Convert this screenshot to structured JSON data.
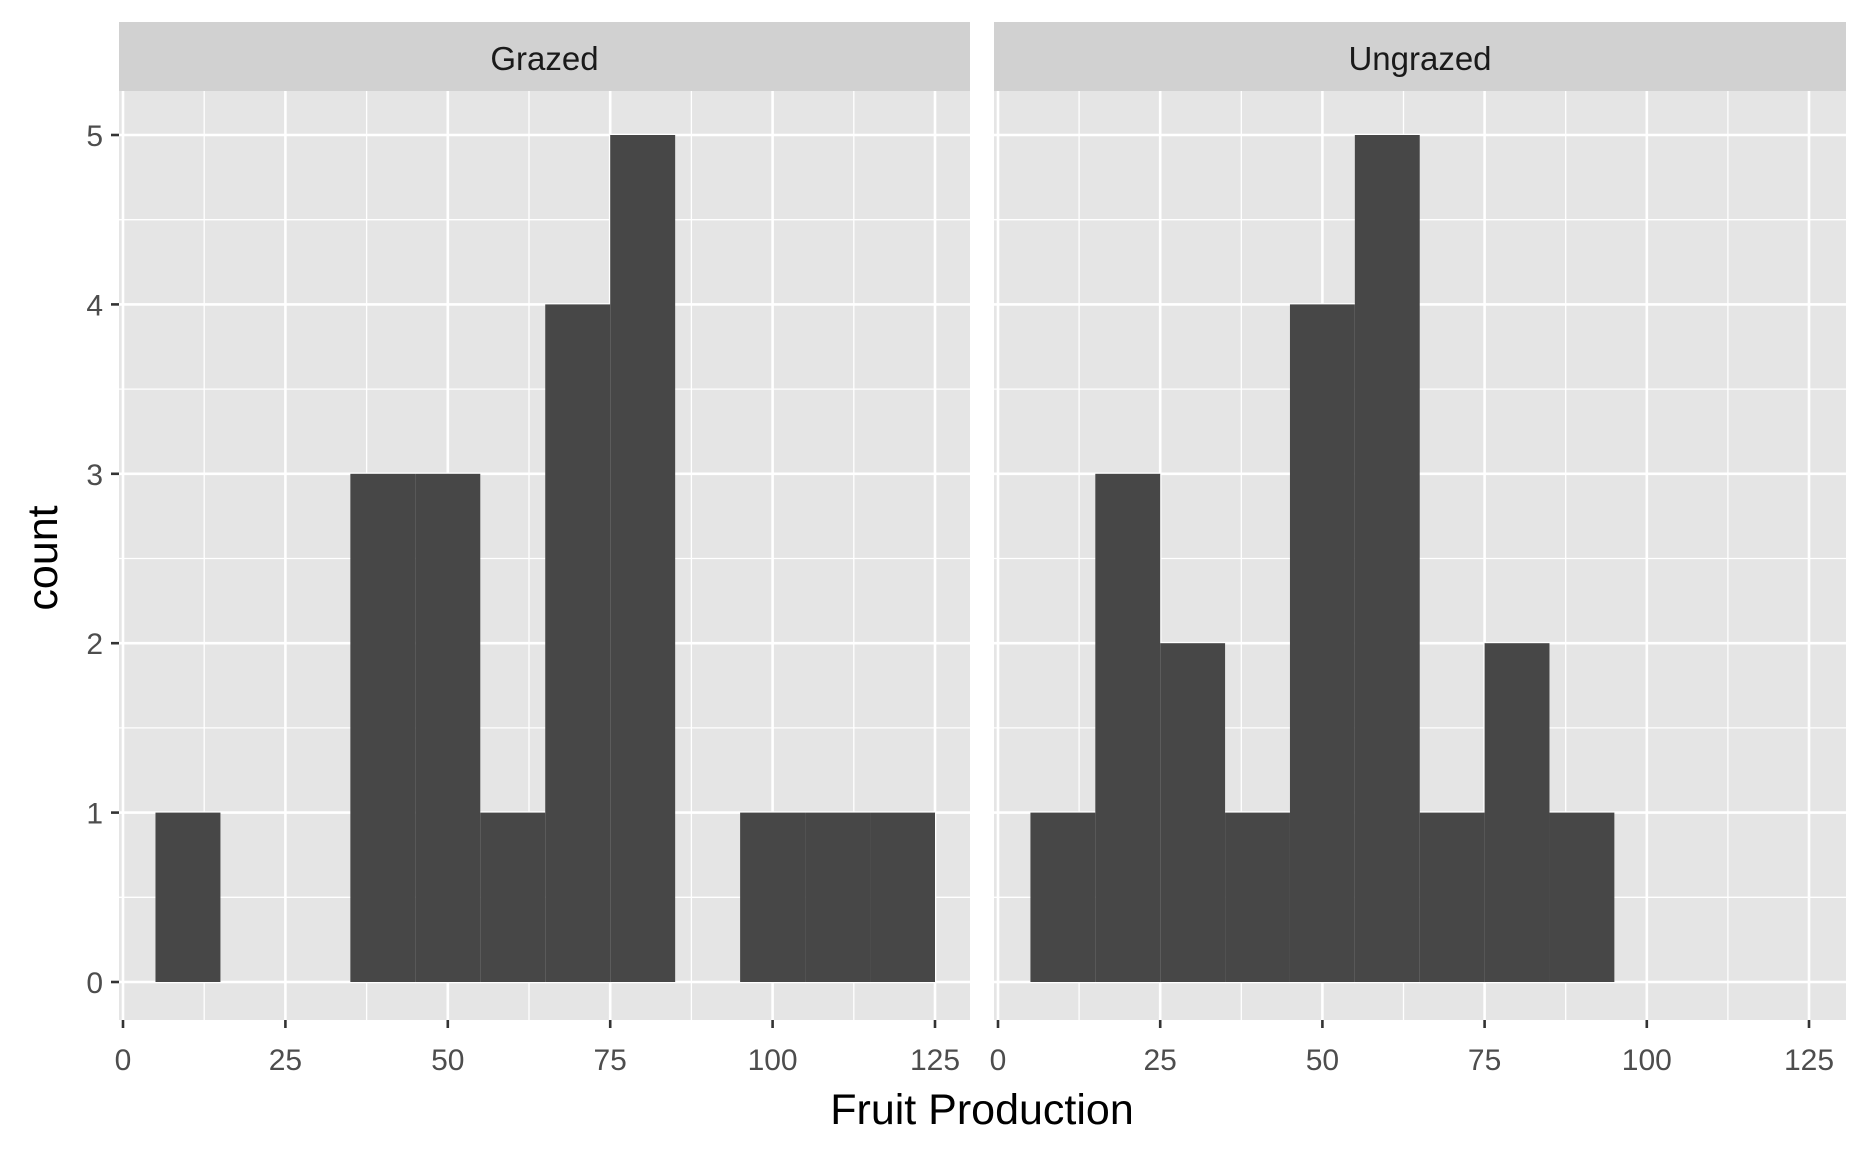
{
  "chart_data": {
    "type": "bar",
    "subtype": "histogram",
    "xlabel": "Fruit Production",
    "ylabel": "count",
    "xlim": [
      0,
      125
    ],
    "ylim": [
      0,
      5
    ],
    "x_ticks": [
      0,
      25,
      50,
      75,
      100,
      125
    ],
    "y_ticks": [
      0,
      1,
      2,
      3,
      4,
      5
    ],
    "bin_width": 10,
    "grid": true,
    "bar_color": "#474747",
    "panel_background": "#e5e5e5",
    "strip_background": "#d1d1d1",
    "grid_color": "#ffffff",
    "panels": [
      {
        "name": "Grazed",
        "bins": [
          {
            "x_start": 5,
            "x_end": 15,
            "count": 1
          },
          {
            "x_start": 15,
            "x_end": 25,
            "count": 0
          },
          {
            "x_start": 25,
            "x_end": 35,
            "count": 0
          },
          {
            "x_start": 35,
            "x_end": 45,
            "count": 3
          },
          {
            "x_start": 45,
            "x_end": 55,
            "count": 3
          },
          {
            "x_start": 55,
            "x_end": 65,
            "count": 1
          },
          {
            "x_start": 65,
            "x_end": 75,
            "count": 4
          },
          {
            "x_start": 75,
            "x_end": 85,
            "count": 5
          },
          {
            "x_start": 85,
            "x_end": 95,
            "count": 0
          },
          {
            "x_start": 95,
            "x_end": 105,
            "count": 1
          },
          {
            "x_start": 105,
            "x_end": 115,
            "count": 1
          },
          {
            "x_start": 115,
            "x_end": 125,
            "count": 1
          }
        ]
      },
      {
        "name": "Ungrazed",
        "bins": [
          {
            "x_start": 5,
            "x_end": 15,
            "count": 1
          },
          {
            "x_start": 15,
            "x_end": 25,
            "count": 3
          },
          {
            "x_start": 25,
            "x_end": 35,
            "count": 2
          },
          {
            "x_start": 35,
            "x_end": 45,
            "count": 1
          },
          {
            "x_start": 45,
            "x_end": 55,
            "count": 4
          },
          {
            "x_start": 55,
            "x_end": 65,
            "count": 5
          },
          {
            "x_start": 65,
            "x_end": 75,
            "count": 1
          },
          {
            "x_start": 75,
            "x_end": 85,
            "count": 2
          },
          {
            "x_start": 85,
            "x_end": 95,
            "count": 1
          },
          {
            "x_start": 95,
            "x_end": 105,
            "count": 0
          },
          {
            "x_start": 105,
            "x_end": 115,
            "count": 0
          },
          {
            "x_start": 115,
            "x_end": 125,
            "count": 0
          }
        ]
      }
    ]
  }
}
